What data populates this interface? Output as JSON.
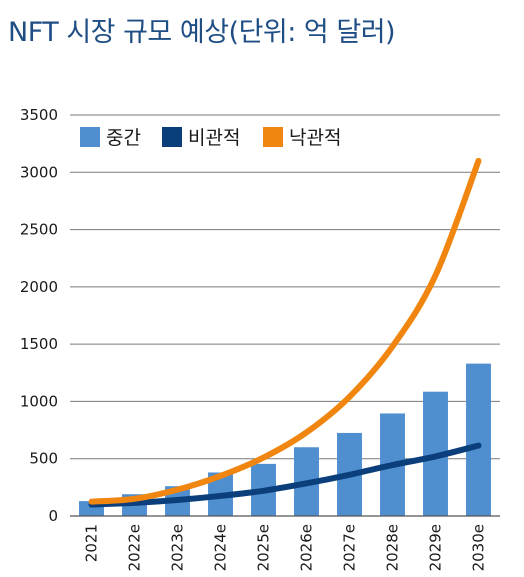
{
  "chart_data": {
    "type": "bar",
    "title": "NFT 시장 규모 예상(단위: 억 달러)",
    "categories": [
      "2021",
      "2022e",
      "2023e",
      "2024e",
      "2025e",
      "2026e",
      "2027e",
      "2028e",
      "2029e",
      "2030e"
    ],
    "series": [
      {
        "name": "중간",
        "kind": "bar",
        "color": "#4f8fd0",
        "values": [
          130,
          190,
          260,
          380,
          455,
          600,
          725,
          895,
          1085,
          1330
        ]
      },
      {
        "name": "비관적",
        "kind": "line",
        "color": "#0b3f7c",
        "values": [
          100,
          115,
          140,
          175,
          220,
          285,
          360,
          445,
          520,
          615
        ]
      },
      {
        "name": "낙관적",
        "kind": "line",
        "color": "#f0860f",
        "values": [
          125,
          150,
          230,
          350,
          510,
          730,
          1040,
          1480,
          2100,
          3100
        ]
      }
    ],
    "ylim": [
      0,
      3500
    ],
    "yticks": [
      "0",
      "500",
      "1000",
      "1500",
      "2000",
      "2500",
      "3000",
      "3500"
    ],
    "grid": true,
    "legend": "top-left",
    "xlabel": "",
    "ylabel": ""
  }
}
